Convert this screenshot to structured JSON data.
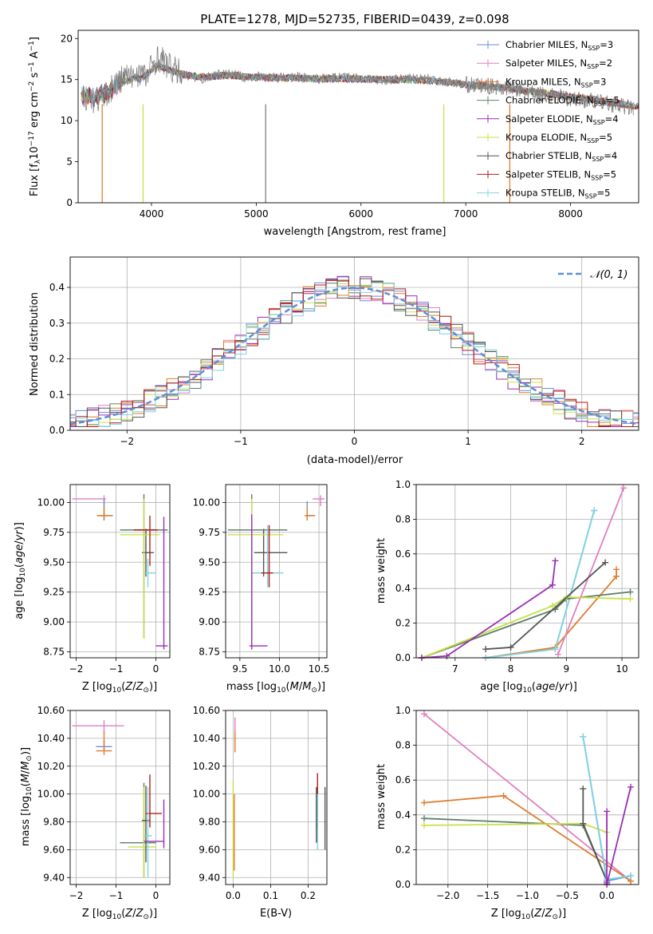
{
  "figure_title": "PLATE=1278, MJD=52735, FIBERID=0439, z=0.098",
  "series_colors": {
    "Chabrier MILES": "#6a8fd8",
    "Salpeter MILES": "#e07fbf",
    "Kroupa MILES": "#e07d2a",
    "Chabrier ELODIE": "#5f7f6a",
    "Salpeter ELODIE": "#9a2fb2",
    "Kroupa ELODIE": "#c8e04a",
    "Chabrier STELIB": "#555555",
    "Salpeter STELIB": "#b31b1b",
    "Kroupa STELIB": "#7fd4e0"
  },
  "chart_data": [
    {
      "id": "spectrum",
      "type": "line",
      "title": "PLATE=1278, MJD=52735, FIBERID=0439, z=0.098",
      "xlabel": "wavelength [Angstrom, rest frame]",
      "ylabel": "Flux [f",
      "xlim": [
        3300,
        8650
      ],
      "ylim": [
        0,
        21
      ],
      "xticks": [
        4000,
        5000,
        6000,
        7000,
        8000
      ],
      "yticks": [
        0,
        5,
        10,
        15,
        20
      ],
      "grid": false,
      "legend_position": "top-right",
      "legend": [
        "Chabrier MILES, N",
        "Salpeter MILES, N",
        "Kroupa MILES, N",
        "Chabrier ELODIE, N",
        "Salpeter ELODIE, N",
        "Kroupa ELODIE, N",
        "Chabrier STELIB, N",
        "Salpeter STELIB, N",
        "Kroupa STELIB, N"
      ],
      "legend_nssp": [
        "=3",
        "=2",
        "=3",
        "=5",
        "=4",
        "=5",
        "=4",
        "=5",
        "=5"
      ],
      "data_color": "#808080",
      "data_x": [
        3350,
        3450,
        3550,
        3650,
        3700,
        3750,
        3800,
        3850,
        3900,
        3950,
        4000,
        4050,
        4100,
        4200,
        4300,
        4400,
        4500,
        4600,
        4700,
        4800,
        4900,
        5000,
        5200,
        5400,
        5600,
        5800,
        6000,
        6200,
        6400,
        6600,
        6800,
        7000,
        7200,
        7400,
        7600,
        7800,
        8000,
        8200,
        8400,
        8600
      ],
      "data_y": [
        13.1,
        12.6,
        12.9,
        14.6,
        14.9,
        15.6,
        15.1,
        15.8,
        15.9,
        15.2,
        16.6,
        17.6,
        17.4,
        16.2,
        15.7,
        15.3,
        15.1,
        15.6,
        15.7,
        15.6,
        15.2,
        15.4,
        15.2,
        15.3,
        15.1,
        15.3,
        15.2,
        14.9,
        15.1,
        15.3,
        14.8,
        14.4,
        14.2,
        14.0,
        13.4,
        13.1,
        12.7,
        12.4,
        12.0,
        11.5
      ],
      "model_x": [
        3350,
        3450,
        3550,
        3650,
        3700,
        3750,
        3800,
        3850,
        3900,
        3950,
        4000,
        4050,
        4100,
        4200,
        4300,
        4400,
        4500,
        4600,
        4700,
        4800,
        4900,
        5000,
        5200,
        5400,
        5600,
        5800,
        6000,
        6200,
        6400,
        6600,
        6800,
        7000,
        7200,
        7400,
        7600,
        7800,
        8000,
        8200,
        8400,
        8600
      ],
      "model_y": [
        13.1,
        12.9,
        13.2,
        14.1,
        14.5,
        14.8,
        15.0,
        15.3,
        15.1,
        15.6,
        16.2,
        16.7,
        16.5,
        16.0,
        15.6,
        15.4,
        15.3,
        15.4,
        15.5,
        15.5,
        15.3,
        15.3,
        15.2,
        15.2,
        15.1,
        15.1,
        15.1,
        15.0,
        15.0,
        14.9,
        14.7,
        14.4,
        14.2,
        14.0,
        13.6,
        13.3,
        12.9,
        12.6,
        12.2,
        11.8
      ]
    },
    {
      "id": "residuals",
      "type": "line",
      "xlabel": "(data-model)/error",
      "ylabel": "Normed distribution",
      "xlim": [
        -2.5,
        2.5
      ],
      "ylim": [
        0,
        0.485
      ],
      "xticks": [
        -2,
        -1,
        0,
        1,
        2
      ],
      "yticks": [
        0.0,
        0.1,
        0.2,
        0.3,
        0.4
      ],
      "grid": true,
      "legend_position": "top-right",
      "legend": [
        "N(0,1)"
      ],
      "reference_curve": {
        "name": "N(0,1)",
        "mean": 0,
        "sigma": 1,
        "style": "dashed",
        "color": "#5b8fd9"
      },
      "bin_width": 0.1,
      "hist_start": -2.5
    },
    {
      "id": "age-vs-z",
      "type": "scatter",
      "xlabel": "Z [log",
      "ylabel": "age  [log",
      "xlim": [
        -2.15,
        0.35
      ],
      "ylim": [
        8.7,
        10.15
      ],
      "xticks": [
        -2,
        -1,
        0
      ],
      "yticks": [
        8.75,
        9.0,
        9.25,
        9.5,
        9.75,
        10.0
      ],
      "grid": true,
      "points": [
        {
          "series": "Salpeter MILES",
          "x": -1.3,
          "y": 10.03,
          "xerr": [
            0.8,
            0.05
          ],
          "yerr": [
            0.06,
            0.03
          ]
        },
        {
          "series": "Chabrier MILES",
          "x": -1.3,
          "y": 9.89,
          "xerr": [
            0.18,
            0.22
          ],
          "yerr": [
            0.04,
            0.14
          ]
        },
        {
          "series": "Kroupa MILES",
          "x": -1.3,
          "y": 9.89,
          "xerr": [
            0.18,
            0.22
          ],
          "yerr": [
            0.04,
            0.08
          ]
        },
        {
          "series": "Chabrier STELIB",
          "x": -0.25,
          "y": 9.58,
          "xerr": [
            0.1,
            0.2
          ],
          "yerr": [
            0.2,
            0.2
          ]
        },
        {
          "series": "Chabrier ELODIE",
          "x": -0.3,
          "y": 9.77,
          "xerr": [
            0.6,
            0.6
          ],
          "yerr": [
            0.9,
            0.3
          ]
        },
        {
          "series": "Kroupa ELODIE",
          "x": -0.3,
          "y": 9.73,
          "xerr": [
            0.6,
            0.4
          ],
          "yerr": [
            0.87,
            0.3
          ]
        },
        {
          "series": "Kroupa STELIB",
          "x": -0.2,
          "y": 9.41,
          "xerr": [
            0.1,
            0.2
          ],
          "yerr": [
            0.12,
            0.12
          ]
        },
        {
          "series": "Salpeter STELIB",
          "x": -0.15,
          "y": 9.77,
          "xerr": [
            0.4,
            0.2
          ],
          "yerr": [
            0.3,
            0.12
          ]
        },
        {
          "series": "Salpeter ELODIE",
          "x": 0.2,
          "y": 8.8,
          "xerr": [
            0.2,
            0.1
          ],
          "yerr": [
            0.03,
            1.08
          ]
        }
      ]
    },
    {
      "id": "age-vs-mass",
      "type": "scatter",
      "xlabel": "mass [log",
      "ylabel": "",
      "xlim": [
        9.32,
        10.6
      ],
      "ylim": [
        8.7,
        10.15
      ],
      "xticks": [
        9.5,
        10.0,
        10.5
      ],
      "yticks": [
        8.75,
        9.0,
        9.25,
        9.5,
        9.75,
        10.0
      ],
      "grid": true,
      "points": [
        {
          "series": "Salpeter MILES",
          "x": 10.52,
          "y": 10.03,
          "xerr": [
            0.1,
            0.05
          ],
          "yerr": [
            0.06,
            0.03
          ]
        },
        {
          "series": "Chabrier MILES",
          "x": 10.35,
          "y": 9.89,
          "xerr": [
            0.03,
            0.1
          ],
          "yerr": [
            0.04,
            0.12
          ]
        },
        {
          "series": "Kroupa MILES",
          "x": 10.35,
          "y": 9.89,
          "xerr": [
            0.03,
            0.1
          ],
          "yerr": [
            0.04,
            0.08
          ]
        },
        {
          "series": "Chabrier STELIB",
          "x": 9.8,
          "y": 9.58,
          "xerr": [
            0.12,
            0.3
          ],
          "yerr": [
            0.2,
            0.2
          ]
        },
        {
          "series": "Chabrier ELODIE",
          "x": 9.65,
          "y": 9.77,
          "xerr": [
            0.3,
            0.45
          ],
          "yerr": [
            0.9,
            0.3
          ]
        },
        {
          "series": "Kroupa ELODIE",
          "x": 9.65,
          "y": 9.73,
          "xerr": [
            0.3,
            0.4
          ],
          "yerr": [
            0.87,
            0.3
          ]
        },
        {
          "series": "Kroupa STELIB",
          "x": 9.85,
          "y": 9.41,
          "xerr": [
            0.2,
            0.2
          ],
          "yerr": [
            0.12,
            0.4
          ]
        },
        {
          "series": "Salpeter STELIB",
          "x": 9.87,
          "y": 9.41,
          "xerr": [
            0.1,
            0.05
          ],
          "yerr": [
            0.12,
            0.4
          ]
        },
        {
          "series": "Salpeter ELODIE",
          "x": 9.65,
          "y": 8.8,
          "xerr": [
            0.03,
            0.2
          ],
          "yerr": [
            0.03,
            1.1
          ]
        }
      ]
    },
    {
      "id": "mass-weight-vs-age",
      "type": "line",
      "xlabel": "age  [log",
      "ylabel": "mass weight",
      "xlim": [
        6.3,
        10.3
      ],
      "ylim": [
        0,
        1
      ],
      "xticks": [
        7,
        8,
        9,
        10
      ],
      "yticks": [
        0.0,
        0.2,
        0.4,
        0.6,
        0.8,
        1.0
      ],
      "grid": true,
      "series": [
        {
          "name": "Chabrier MILES",
          "x": [
            7.55,
            8.8,
            9.5
          ],
          "y": [
            0.0,
            0.05,
            0.85
          ]
        },
        {
          "name": "Kroupa MILES",
          "x": [
            7.55,
            8.8,
            9.9,
            9.9
          ],
          "y": [
            0.0,
            0.06,
            0.47,
            0.51
          ]
        },
        {
          "name": "Kroupa STELIB",
          "x": [
            7.55,
            8.8,
            9.5
          ],
          "y": [
            0.0,
            0.05,
            0.85
          ]
        },
        {
          "name": "Salpeter MILES",
          "x": [
            8.85,
            10.03
          ],
          "y": [
            0.02,
            0.98
          ]
        },
        {
          "name": "Chabrier ELODIE",
          "x": [
            6.4,
            8.8,
            9.0,
            10.15
          ],
          "y": [
            0.0,
            0.28,
            0.34,
            0.38
          ]
        },
        {
          "name": "Kroupa ELODIE",
          "x": [
            6.4,
            8.75,
            9.0,
            10.15
          ],
          "y": [
            0.0,
            0.3,
            0.35,
            0.34
          ]
        },
        {
          "name": "Chabrier STELIB",
          "x": [
            7.55,
            8.0,
            9.7
          ],
          "y": [
            0.05,
            0.06,
            0.55
          ]
        },
        {
          "name": "Salpeter ELODIE",
          "x": [
            6.4,
            6.85,
            8.75,
            8.8
          ],
          "y": [
            0.0,
            0.01,
            0.42,
            0.56
          ]
        }
      ]
    },
    {
      "id": "mass-vs-z",
      "type": "scatter",
      "xlabel": "Z [log",
      "ylabel": "mass [log",
      "xlim": [
        -2.15,
        0.35
      ],
      "ylim": [
        9.35,
        10.6
      ],
      "xticks": [
        -2,
        -1,
        0
      ],
      "yticks": [
        9.4,
        9.6,
        9.8,
        10.0,
        10.2,
        10.4,
        10.6
      ],
      "grid": true,
      "points": [
        {
          "series": "Salpeter MILES",
          "x": -1.3,
          "y": 10.49,
          "xerr": [
            0.8,
            0.5
          ],
          "yerr": [
            0.06,
            0.04
          ]
        },
        {
          "series": "Chabrier MILES",
          "x": -1.3,
          "y": 10.34,
          "xerr": [
            0.2,
            0.2
          ],
          "yerr": [
            0.03,
            0.05
          ]
        },
        {
          "series": "Kroupa MILES",
          "x": -1.3,
          "y": 10.31,
          "xerr": [
            0.2,
            0.2
          ],
          "yerr": [
            0.03,
            0.14
          ]
        },
        {
          "series": "Chabrier ELODIE",
          "x": -0.3,
          "y": 9.65,
          "xerr": [
            0.6,
            0.3
          ],
          "yerr": [
            0.25,
            0.43
          ]
        },
        {
          "series": "Kroupa ELODIE",
          "x": -0.3,
          "y": 9.62,
          "xerr": [
            0.4,
            0.3
          ],
          "yerr": [
            0.22,
            0.43
          ]
        },
        {
          "series": "Chabrier STELIB",
          "x": -0.25,
          "y": 9.81,
          "xerr": [
            0.1,
            0.1
          ],
          "yerr": [
            0.3,
            0.25
          ]
        },
        {
          "series": "Salpeter STELIB",
          "x": -0.15,
          "y": 9.86,
          "xerr": [
            0.1,
            0.3
          ],
          "yerr": [
            0.1,
            0.28
          ]
        },
        {
          "series": "Kroupa STELIB",
          "x": -0.2,
          "y": 9.7,
          "xerr": [
            0.1,
            0.1
          ],
          "yerr": [
            0.3,
            0.35
          ]
        },
        {
          "series": "Salpeter ELODIE",
          "x": 0.2,
          "y": 9.66,
          "xerr": [
            0.5,
            0.0
          ],
          "yerr": [
            0.05,
            0.3
          ]
        }
      ]
    },
    {
      "id": "mass-vs-ebv",
      "type": "scatter",
      "xlabel": "E(B-V)",
      "ylabel": "",
      "xlim": [
        -0.02,
        0.25
      ],
      "ylim": [
        9.35,
        10.6
      ],
      "xticks": [
        0.0,
        0.1,
        0.2
      ],
      "yticks": [
        9.4,
        9.6,
        9.8,
        10.0,
        10.2,
        10.4,
        10.6
      ],
      "grid": true,
      "points": [
        {
          "series": "Salpeter MILES",
          "x": 0.005,
          "y": 10.45,
          "xerr": [
            0,
            0
          ],
          "yerr": [
            0.08,
            0.1
          ]
        },
        {
          "series": "Kroupa MILES",
          "x": 0.005,
          "y": 10.35,
          "xerr": [
            0,
            0
          ],
          "yerr": [
            0.05,
            0.1
          ]
        },
        {
          "series": "Kroupa ELODIE",
          "x": 0.0,
          "y": 9.7,
          "xerr": [
            0,
            0
          ],
          "yerr": [
            0.3,
            0.4
          ]
        },
        {
          "series": "Kroupa MILES",
          "x": 0.003,
          "y": 9.75,
          "xerr": [
            0,
            0
          ],
          "yerr": [
            0.3,
            0.25
          ]
        },
        {
          "series": "Chabrier STELIB",
          "x": 0.222,
          "y": 9.8,
          "xerr": [
            0,
            0
          ],
          "yerr": [
            0.15,
            0.25
          ]
        },
        {
          "series": "Salpeter STELIB",
          "x": 0.225,
          "y": 9.9,
          "xerr": [
            0,
            0
          ],
          "yerr": [
            0.15,
            0.25
          ]
        },
        {
          "series": "Kroupa STELIB",
          "x": 0.225,
          "y": 9.7,
          "xerr": [
            0,
            0
          ],
          "yerr": [
            0.1,
            0.3
          ]
        },
        {
          "series": "Chabrier STELIB",
          "x": 0.245,
          "y": 9.8,
          "xerr": [
            0,
            0
          ],
          "yerr": [
            0.2,
            0.25
          ]
        }
      ]
    },
    {
      "id": "mass-weight-vs-z",
      "type": "line",
      "xlabel": "Z [log",
      "ylabel": "mass weight",
      "xlim": [
        -2.4,
        0.4
      ],
      "ylim": [
        0,
        1
      ],
      "xticks": [
        -2.0,
        -1.5,
        -1.0,
        -0.5,
        0.0
      ],
      "yticks": [
        0.0,
        0.2,
        0.4,
        0.6,
        0.8,
        1.0
      ],
      "grid": true,
      "series": [
        {
          "name": "Salpeter MILES",
          "x": [
            -2.3,
            0.3
          ],
          "y": [
            0.98,
            0.02
          ]
        },
        {
          "name": "Kroupa MILES",
          "x": [
            -2.3,
            -1.3,
            0.3
          ],
          "y": [
            0.47,
            0.51,
            0.02
          ]
        },
        {
          "name": "Chabrier ELODIE",
          "x": [
            -2.3,
            -0.3,
            0.0
          ],
          "y": [
            0.38,
            0.34,
            0.02
          ]
        },
        {
          "name": "Kroupa ELODIE",
          "x": [
            -2.3,
            -0.3,
            0.0,
            0.0
          ],
          "y": [
            0.34,
            0.35,
            0.3,
            0.0
          ]
        },
        {
          "name": "Chabrier STELIB",
          "x": [
            -0.3,
            -0.3,
            0.0
          ],
          "y": [
            0.55,
            0.35,
            0.02
          ]
        },
        {
          "name": "Chabrier MILES",
          "x": [
            -0.3,
            0.0,
            0.3
          ],
          "y": [
            0.85,
            0.02,
            0.05
          ]
        },
        {
          "name": "Kroupa STELIB",
          "x": [
            -0.3,
            0.0,
            0.3
          ],
          "y": [
            0.85,
            0.03,
            0.05
          ]
        },
        {
          "name": "Salpeter ELODIE",
          "x": [
            0.0,
            0.0,
            0.0,
            0.3
          ],
          "y": [
            0.42,
            0.01,
            0.0,
            0.56
          ]
        }
      ]
    }
  ]
}
